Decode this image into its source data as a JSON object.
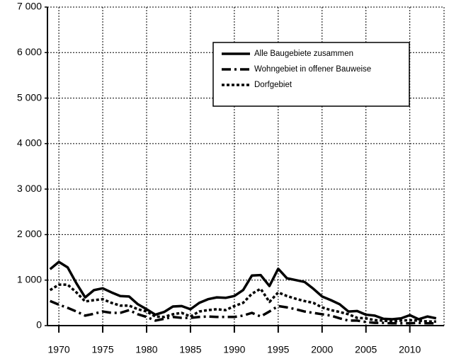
{
  "chart_data": {
    "type": "line",
    "x": [
      1969,
      1970,
      1971,
      1972,
      1973,
      1974,
      1975,
      1976,
      1977,
      1978,
      1979,
      1980,
      1981,
      1982,
      1983,
      1984,
      1985,
      1986,
      1987,
      1988,
      1989,
      1990,
      1991,
      1992,
      1993,
      1994,
      1995,
      1996,
      1997,
      1998,
      1999,
      2000,
      2001,
      2002,
      2003,
      2004,
      2005,
      2006,
      2007,
      2008,
      2009,
      2010,
      2011,
      2012,
      2013
    ],
    "series": [
      {
        "name": "Alle Baugebiete zusammen",
        "color": "#000000",
        "dash": "solid",
        "values": [
          1240,
          1400,
          1280,
          930,
          620,
          780,
          820,
          730,
          650,
          640,
          470,
          360,
          240,
          300,
          420,
          430,
          360,
          500,
          580,
          620,
          610,
          650,
          780,
          1100,
          1110,
          870,
          1250,
          1040,
          1000,
          960,
          810,
          640,
          560,
          470,
          310,
          320,
          240,
          220,
          150,
          140,
          160,
          230,
          140,
          200,
          160
        ]
      },
      {
        "name": "Wohngebiet in offener Bauweise",
        "color": "#000000",
        "dash": "dashdot",
        "values": [
          540,
          460,
          390,
          310,
          220,
          260,
          310,
          280,
          280,
          340,
          250,
          190,
          110,
          150,
          190,
          170,
          170,
          190,
          200,
          190,
          190,
          190,
          220,
          280,
          200,
          310,
          430,
          400,
          360,
          310,
          280,
          250,
          220,
          160,
          110,
          110,
          80,
          60,
          60,
          50,
          50,
          50,
          60,
          50,
          50
        ]
      },
      {
        "name": "Dorfgebiet",
        "color": "#000000",
        "dash": "dotted",
        "values": [
          780,
          900,
          900,
          730,
          530,
          560,
          580,
          500,
          440,
          440,
          360,
          310,
          200,
          190,
          250,
          280,
          200,
          310,
          340,
          360,
          340,
          430,
          500,
          700,
          810,
          520,
          730,
          650,
          590,
          540,
          500,
          400,
          340,
          300,
          250,
          170,
          160,
          120,
          110,
          90,
          110,
          120,
          110,
          90,
          90
        ]
      }
    ],
    "xlim": [
      1968.7,
      2013.9
    ],
    "xticks": [
      1970,
      1975,
      1980,
      1985,
      1990,
      1995,
      2000,
      2005,
      2010
    ],
    "ylim": [
      0,
      7000
    ],
    "yticks": [
      0,
      {
        "value": 1000,
        "label": "1 000"
      },
      {
        "value": 2000,
        "label": "2 000"
      },
      {
        "value": 3000,
        "label": "3 000"
      },
      {
        "value": 4000,
        "label": "4 000"
      },
      {
        "value": 5000,
        "label": "5 000"
      },
      {
        "value": 6000,
        "label": "6 000"
      },
      {
        "value": 7000,
        "label": "7 000"
      }
    ],
    "grid": true,
    "legend": "upper right"
  }
}
